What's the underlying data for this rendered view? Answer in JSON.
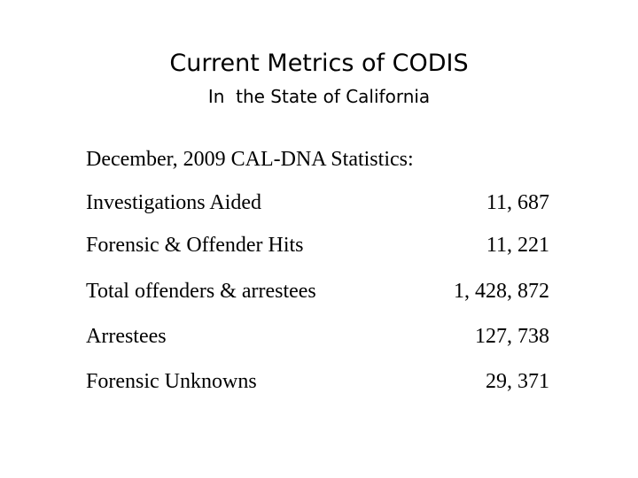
{
  "header": {
    "title": "Current Metrics of CODIS",
    "subtitle": "In  the State of California"
  },
  "table": {
    "caption": "December, 2009 CAL-DNA Statistics:",
    "rows": [
      [
        "Investigations Aided",
        "11, 687"
      ],
      [
        "Forensic & Offender Hits",
        "11, 221"
      ],
      [
        "Total offenders & arrestees",
        "1, 428, 872"
      ],
      [
        "Arrestees",
        "127, 738"
      ],
      [
        "Forensic Unknowns",
        "29, 371"
      ]
    ]
  }
}
